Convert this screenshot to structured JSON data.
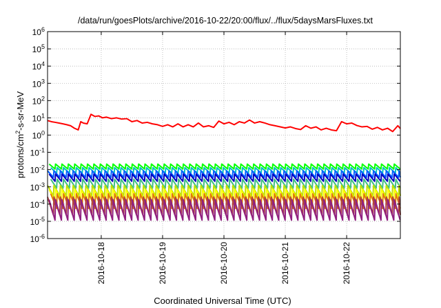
{
  "chart_data": {
    "type": "line",
    "title": "/data/run/goesPlots/archive/2016-10-22/20:00/flux/../flux/5daysMarsFluxes.txt",
    "xlabel": "Coordinated Universal Time (UTC)",
    "ylabel_parts": [
      "protons/cm",
      "2",
      "-s-sr-MeV"
    ],
    "y_scale": "log",
    "ylim": [
      1e-06,
      1000000.0
    ],
    "y_ticks": [
      {
        "mant": "10",
        "exp": "-6",
        "value": 1e-06
      },
      {
        "mant": "10",
        "exp": "-5",
        "value": 1e-05
      },
      {
        "mant": "10",
        "exp": "-4",
        "value": 0.0001
      },
      {
        "mant": "10",
        "exp": "-3",
        "value": 0.001
      },
      {
        "mant": "10",
        "exp": "-2",
        "value": 0.01
      },
      {
        "mant": "10",
        "exp": "-1",
        "value": 0.1
      },
      {
        "mant": "10",
        "exp": "0",
        "value": 1
      },
      {
        "mant": "10",
        "exp": "1",
        "value": 10
      },
      {
        "mant": "10",
        "exp": "2",
        "value": 100
      },
      {
        "mant": "10",
        "exp": "3",
        "value": 1000.0
      },
      {
        "mant": "10",
        "exp": "4",
        "value": 10000.0
      },
      {
        "mant": "10",
        "exp": "5",
        "value": 100000.0
      },
      {
        "mant": "10",
        "exp": "6",
        "value": 1000000.0
      }
    ],
    "x_range": [
      "2016-10-17 03:00",
      "2016-10-22 21:00"
    ],
    "x_ticks": [
      "2016-10-18",
      "2016-10-19",
      "2016-10-20",
      "2016-10-21",
      "2016-10-22"
    ],
    "grid": true,
    "series": [
      {
        "color": "#ff0000",
        "x": [
          "2016-10-17 03:00",
          "2016-10-17 04:30",
          "2016-10-17 06:00",
          "2016-10-17 07:30",
          "2016-10-17 09:00",
          "2016-10-17 10:30",
          "2016-10-17 12:00",
          "2016-10-17 13:30",
          "2016-10-17 15:00",
          "2016-10-17 16:00",
          "2016-10-17 17:00",
          "2016-10-17 18:30",
          "2016-10-17 20:00",
          "2016-10-17 21:30",
          "2016-10-17 23:00",
          "2016-10-18 00:30",
          "2016-10-18 02:00",
          "2016-10-18 04:00",
          "2016-10-18 06:00",
          "2016-10-18 08:00",
          "2016-10-18 10:00",
          "2016-10-18 12:00",
          "2016-10-18 14:00",
          "2016-10-18 16:00",
          "2016-10-18 18:00",
          "2016-10-18 20:00",
          "2016-10-18 22:00",
          "2016-10-19 00:00",
          "2016-10-19 02:00",
          "2016-10-19 04:00",
          "2016-10-19 06:00",
          "2016-10-19 08:00",
          "2016-10-19 10:00",
          "2016-10-19 12:00",
          "2016-10-19 14:00",
          "2016-10-19 16:00",
          "2016-10-19 18:00",
          "2016-10-19 20:00",
          "2016-10-19 22:00",
          "2016-10-20 00:00",
          "2016-10-20 02:00",
          "2016-10-20 04:00",
          "2016-10-20 06:00",
          "2016-10-20 08:00",
          "2016-10-20 10:00",
          "2016-10-20 12:00",
          "2016-10-20 14:00",
          "2016-10-20 16:00",
          "2016-10-20 18:00",
          "2016-10-20 20:00",
          "2016-10-20 22:00",
          "2016-10-21 00:00",
          "2016-10-21 02:00",
          "2016-10-21 04:00",
          "2016-10-21 06:00",
          "2016-10-21 08:00",
          "2016-10-21 10:00",
          "2016-10-21 12:00",
          "2016-10-21 14:00",
          "2016-10-21 16:00",
          "2016-10-21 18:00",
          "2016-10-21 20:00",
          "2016-10-21 22:00",
          "2016-10-22 00:00",
          "2016-10-22 02:00",
          "2016-10-22 04:00",
          "2016-10-22 06:00",
          "2016-10-22 08:00",
          "2016-10-22 10:00",
          "2016-10-22 12:00",
          "2016-10-22 14:00",
          "2016-10-22 16:00",
          "2016-10-22 18:00",
          "2016-10-22 20:00",
          "2016-10-22 21:00"
        ],
        "y": [
          7,
          6,
          5.5,
          5,
          4.5,
          4,
          3.5,
          2.5,
          2,
          6,
          5,
          4.5,
          16,
          12,
          13,
          10,
          11,
          9,
          10,
          8.5,
          9,
          6,
          7,
          5,
          5.5,
          4.5,
          4,
          3.2,
          4,
          3,
          4.5,
          3,
          4,
          3,
          5,
          3,
          3.5,
          2.8,
          6.5,
          4.5,
          5.5,
          4,
          6,
          5,
          7.5,
          5,
          6,
          5,
          4,
          3.5,
          3,
          2.6,
          3,
          2.4,
          2.1,
          3.5,
          2.5,
          3,
          2,
          2.5,
          2,
          1.8,
          6,
          4.5,
          5,
          3.6,
          3,
          3.2,
          2.2,
          2.8,
          2,
          2.5,
          1.6,
          3.5,
          2.4
        ]
      },
      {
        "color": "#00ff00",
        "amp": 0.021,
        "decay": 0.52
      },
      {
        "color": "#00c0c0",
        "amp": 0.013,
        "decay": 0.48
      },
      {
        "color": "#0060ff",
        "amp": 0.0085,
        "decay": 0.42
      },
      {
        "color": "#0000c0",
        "amp": 0.0055,
        "decay": 0.38
      },
      {
        "color": "#40c080",
        "amp": 0.0028,
        "decay": 0.3
      },
      {
        "color": "#c0e000",
        "amp": 0.0012,
        "decay": 0.25
      },
      {
        "color": "#ffff00",
        "amp": 0.0007,
        "decay": 0.2
      },
      {
        "color": "#e08000",
        "amp": 0.0004,
        "decay": 0.14
      },
      {
        "color": "#b04040",
        "amp": 0.00026,
        "decay": 0.09
      },
      {
        "color": "#902080",
        "amp": 0.00018,
        "decay": 0.065
      }
    ]
  }
}
